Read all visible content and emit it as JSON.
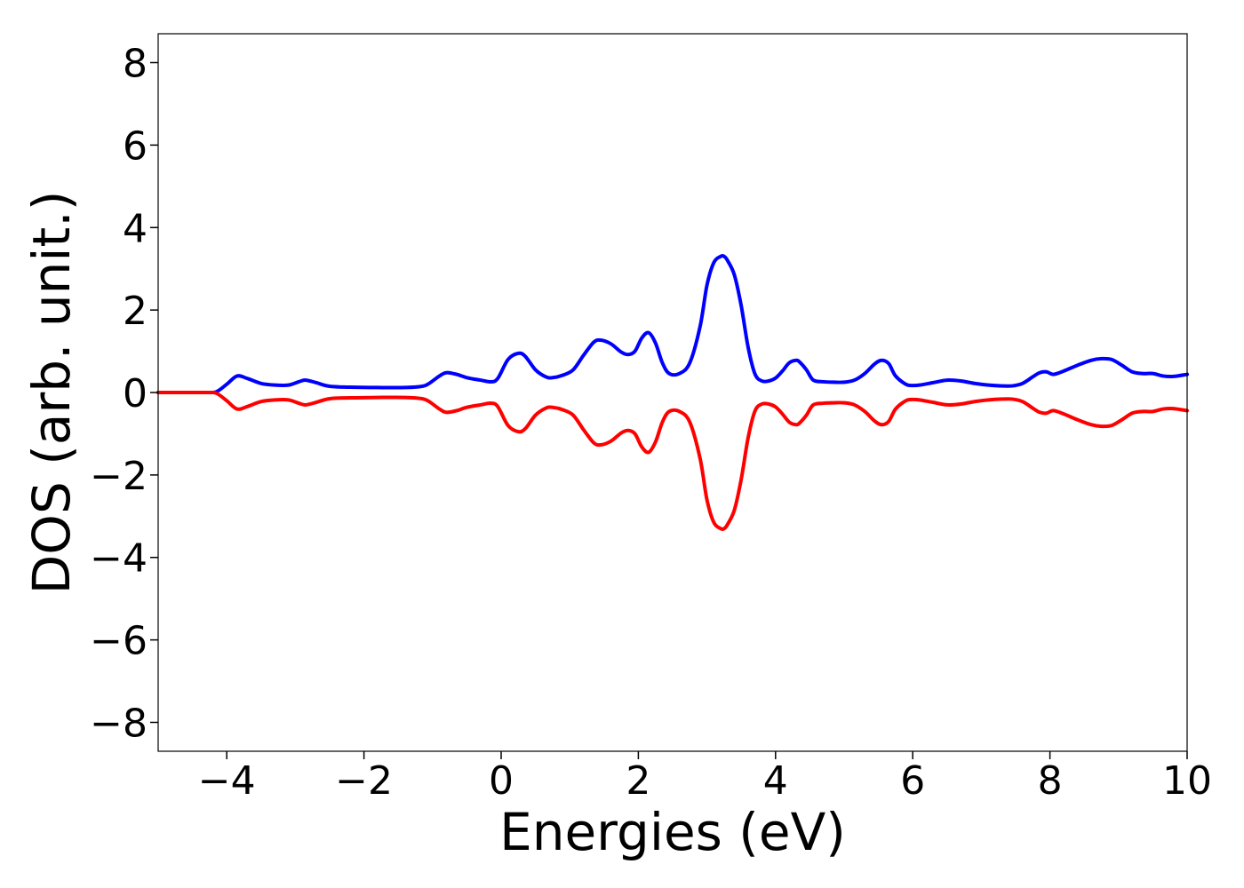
{
  "chart_data": {
    "type": "line",
    "title": "",
    "xlabel": "Energies (eV)",
    "ylabel": "DOS (arb. unit.)",
    "xlim": [
      -5,
      10
    ],
    "ylim": [
      -8.7,
      8.7
    ],
    "x_ticks": [
      -4,
      -2,
      0,
      2,
      4,
      6,
      8,
      10
    ],
    "x_tick_labels": [
      "−4",
      "−2",
      "0",
      "2",
      "4",
      "6",
      "8",
      "10"
    ],
    "y_ticks": [
      -8,
      -6,
      -4,
      -2,
      0,
      2,
      4,
      6,
      8
    ],
    "y_tick_labels": [
      "−8",
      "−6",
      "−4",
      "−2",
      "0",
      "2",
      "4",
      "6",
      "8"
    ],
    "grid": false,
    "legend": "none",
    "series": [
      {
        "color": "#0000ff",
        "x": [
          -5.0,
          -4.3,
          -4.15,
          -4.0,
          -3.85,
          -3.7,
          -3.5,
          -3.3,
          -3.1,
          -2.95,
          -2.85,
          -2.7,
          -2.5,
          -2.2,
          -1.8,
          -1.4,
          -1.15,
          -1.05,
          -0.9,
          -0.8,
          -0.65,
          -0.5,
          -0.3,
          -0.15,
          -0.05,
          0.1,
          0.25,
          0.35,
          0.5,
          0.65,
          0.75,
          0.9,
          1.05,
          1.2,
          1.35,
          1.45,
          1.6,
          1.75,
          1.85,
          1.95,
          2.05,
          2.15,
          2.25,
          2.35,
          2.45,
          2.6,
          2.75,
          2.9,
          3.0,
          3.1,
          3.2,
          3.25,
          3.3,
          3.4,
          3.5,
          3.6,
          3.7,
          3.8,
          3.9,
          4.0,
          4.1,
          4.2,
          4.3,
          4.35,
          4.45,
          4.55,
          4.7,
          4.85,
          5.0,
          5.15,
          5.3,
          5.45,
          5.55,
          5.65,
          5.75,
          5.9,
          6.0,
          6.1,
          6.3,
          6.5,
          6.7,
          6.9,
          7.1,
          7.3,
          7.45,
          7.6,
          7.75,
          7.85,
          7.95,
          8.05,
          8.2,
          8.4,
          8.6,
          8.75,
          8.9,
          9.05,
          9.2,
          9.35,
          9.5,
          9.65,
          9.8,
          10.0
        ],
        "y": [
          0.0,
          0.0,
          0.02,
          0.2,
          0.4,
          0.34,
          0.22,
          0.18,
          0.18,
          0.26,
          0.3,
          0.24,
          0.15,
          0.13,
          0.12,
          0.12,
          0.15,
          0.22,
          0.4,
          0.48,
          0.44,
          0.36,
          0.3,
          0.26,
          0.34,
          0.8,
          0.95,
          0.88,
          0.55,
          0.38,
          0.36,
          0.42,
          0.55,
          0.9,
          1.22,
          1.27,
          1.18,
          0.98,
          0.92,
          1.0,
          1.32,
          1.45,
          1.2,
          0.72,
          0.46,
          0.46,
          0.72,
          1.6,
          2.6,
          3.15,
          3.3,
          3.3,
          3.2,
          2.85,
          2.1,
          1.1,
          0.45,
          0.28,
          0.28,
          0.35,
          0.52,
          0.72,
          0.78,
          0.74,
          0.55,
          0.3,
          0.26,
          0.25,
          0.25,
          0.3,
          0.46,
          0.7,
          0.78,
          0.7,
          0.4,
          0.2,
          0.17,
          0.18,
          0.24,
          0.3,
          0.28,
          0.22,
          0.18,
          0.16,
          0.16,
          0.22,
          0.38,
          0.48,
          0.5,
          0.44,
          0.52,
          0.66,
          0.78,
          0.82,
          0.8,
          0.66,
          0.5,
          0.46,
          0.46,
          0.4,
          0.39,
          0.44
        ]
      },
      {
        "color": "#ff0000",
        "x": [
          -5.0,
          -4.3,
          -4.15,
          -4.0,
          -3.85,
          -3.7,
          -3.5,
          -3.3,
          -3.1,
          -2.95,
          -2.85,
          -2.7,
          -2.5,
          -2.2,
          -1.8,
          -1.4,
          -1.15,
          -1.05,
          -0.9,
          -0.8,
          -0.65,
          -0.5,
          -0.3,
          -0.15,
          -0.05,
          0.1,
          0.25,
          0.35,
          0.5,
          0.65,
          0.75,
          0.9,
          1.05,
          1.2,
          1.35,
          1.45,
          1.6,
          1.75,
          1.85,
          1.95,
          2.05,
          2.15,
          2.25,
          2.35,
          2.45,
          2.6,
          2.75,
          2.9,
          3.0,
          3.1,
          3.2,
          3.25,
          3.3,
          3.4,
          3.5,
          3.6,
          3.7,
          3.8,
          3.9,
          4.0,
          4.1,
          4.2,
          4.3,
          4.35,
          4.45,
          4.55,
          4.7,
          4.85,
          5.0,
          5.15,
          5.3,
          5.45,
          5.55,
          5.65,
          5.75,
          5.9,
          6.0,
          6.1,
          6.3,
          6.5,
          6.7,
          6.9,
          7.1,
          7.3,
          7.45,
          7.6,
          7.75,
          7.85,
          7.95,
          8.05,
          8.2,
          8.4,
          8.6,
          8.75,
          8.9,
          9.05,
          9.2,
          9.35,
          9.5,
          9.65,
          9.8,
          10.0
        ],
        "y": [
          0.0,
          0.0,
          -0.02,
          -0.2,
          -0.4,
          -0.34,
          -0.22,
          -0.18,
          -0.18,
          -0.26,
          -0.3,
          -0.24,
          -0.15,
          -0.13,
          -0.12,
          -0.12,
          -0.15,
          -0.22,
          -0.4,
          -0.48,
          -0.44,
          -0.36,
          -0.3,
          -0.26,
          -0.34,
          -0.8,
          -0.95,
          -0.88,
          -0.55,
          -0.38,
          -0.36,
          -0.42,
          -0.55,
          -0.9,
          -1.22,
          -1.27,
          -1.18,
          -0.98,
          -0.92,
          -1.0,
          -1.32,
          -1.45,
          -1.2,
          -0.72,
          -0.46,
          -0.46,
          -0.72,
          -1.6,
          -2.6,
          -3.15,
          -3.3,
          -3.3,
          -3.2,
          -2.85,
          -2.1,
          -1.1,
          -0.45,
          -0.28,
          -0.28,
          -0.35,
          -0.52,
          -0.72,
          -0.78,
          -0.74,
          -0.55,
          -0.3,
          -0.26,
          -0.25,
          -0.25,
          -0.3,
          -0.46,
          -0.7,
          -0.78,
          -0.7,
          -0.4,
          -0.2,
          -0.17,
          -0.18,
          -0.24,
          -0.3,
          -0.28,
          -0.22,
          -0.18,
          -0.16,
          -0.16,
          -0.22,
          -0.38,
          -0.48,
          -0.5,
          -0.44,
          -0.52,
          -0.66,
          -0.78,
          -0.82,
          -0.8,
          -0.66,
          -0.5,
          -0.46,
          -0.46,
          -0.4,
          -0.39,
          -0.44
        ]
      }
    ]
  }
}
